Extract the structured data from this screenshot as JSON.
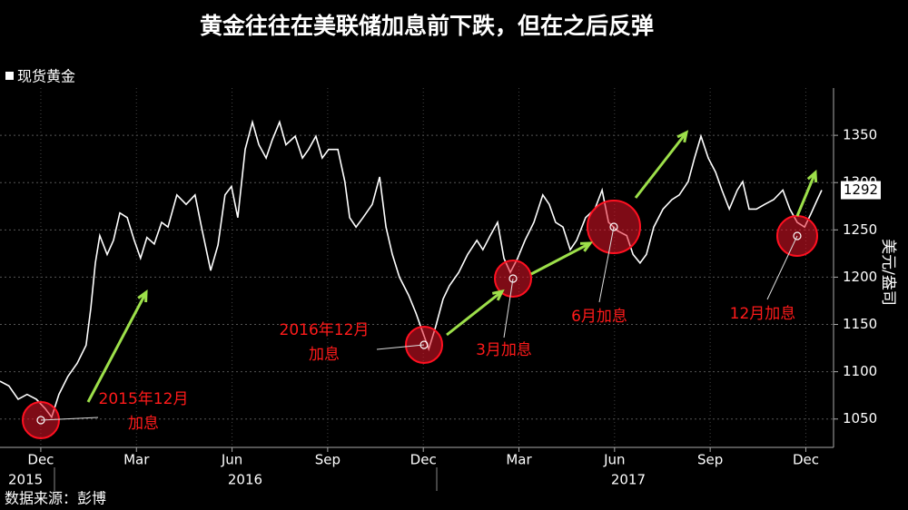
{
  "chart_data": {
    "type": "line",
    "title": "黄金往往在美联储加息前下跌，但在之后反弹",
    "y_label": "美元/盎司",
    "source": "数据来源：彭博",
    "x": [
      -1.28,
      -1.0,
      -0.71,
      -0.43,
      -0.14,
      0.14,
      0.34,
      0.57,
      0.85,
      1.14,
      1.42,
      1.57,
      1.71,
      1.85,
      2.08,
      2.28,
      2.48,
      2.71,
      2.93,
      3.13,
      3.33,
      3.56,
      3.79,
      3.99,
      4.27,
      4.56,
      4.84,
      5.04,
      5.33,
      5.56,
      5.78,
      5.98,
      6.18,
      6.41,
      6.64,
      6.84,
      7.07,
      7.26,
      7.49,
      7.69,
      7.98,
      8.21,
      8.4,
      8.63,
      8.83,
      9.03,
      9.32,
      9.54,
      9.69,
      9.89,
      10.11,
      10.4,
      10.63,
      10.83,
      11.03,
      11.25,
      11.54,
      11.77,
      11.97,
      12.17,
      12.39,
      12.62,
      12.82,
      13.11,
      13.39,
      13.68,
      13.87,
      14.1,
      14.33,
      14.53,
      14.73,
      14.96,
      15.19,
      15.47,
      15.75,
      15.95,
      16.15,
      16.38,
      16.61,
      16.81,
      17.09,
      17.38,
      17.61,
      17.81,
      18.09,
      18.38,
      18.58,
      18.8,
      19.0,
      19.23,
      19.52,
      19.8,
      20.03,
      20.31,
      20.51,
      20.71,
      20.94,
      21.17,
      21.37,
      21.6,
      21.85,
      22.02,
      22.22,
      22.45,
      22.71,
      22.99,
      23.28,
      23.5,
      23.73,
      23.96,
      24.16,
      24.36,
      24.5
    ],
    "series": [
      {
        "name": "现货黄金",
        "color": "#ffffff",
        "values": [
          1090,
          1085,
          1071,
          1076,
          1071,
          1061,
          1052,
          1076,
          1095,
          1109,
          1128,
          1167,
          1215,
          1244,
          1224,
          1239,
          1268,
          1263,
          1239,
          1220,
          1242,
          1235,
          1258,
          1253,
          1287,
          1277,
          1287,
          1253,
          1207,
          1234,
          1287,
          1296,
          1263,
          1335,
          1364,
          1340,
          1326,
          1345,
          1364,
          1340,
          1349,
          1326,
          1335,
          1349,
          1326,
          1335,
          1335,
          1301,
          1263,
          1253,
          1263,
          1277,
          1306,
          1253,
          1224,
          1200,
          1181,
          1162,
          1143,
          1124,
          1148,
          1177,
          1191,
          1205,
          1224,
          1239,
          1229,
          1244,
          1258,
          1220,
          1205,
          1220,
          1239,
          1258,
          1287,
          1277,
          1258,
          1253,
          1229,
          1239,
          1263,
          1272,
          1292,
          1258,
          1249,
          1244,
          1224,
          1215,
          1224,
          1253,
          1272,
          1282,
          1287,
          1301,
          1326,
          1349,
          1326,
          1311,
          1292,
          1272,
          1292,
          1301,
          1272,
          1272,
          1277,
          1282,
          1292,
          1272,
          1258,
          1253,
          1267,
          1282,
          1292
        ]
      }
    ],
    "xlim": [
      -1.28,
      24.87
    ],
    "ylim": [
      1020,
      1400
    ],
    "xticks": [
      {
        "value": 0,
        "label": "Dec"
      },
      {
        "value": 3,
        "label": "Mar"
      },
      {
        "value": 6,
        "label": "Jun"
      },
      {
        "value": 9,
        "label": "Sep"
      },
      {
        "value": 12,
        "label": "Dec"
      },
      {
        "value": 15,
        "label": "Mar"
      },
      {
        "value": 18,
        "label": "Jun"
      },
      {
        "value": 21,
        "label": "Sep"
      },
      {
        "value": 24,
        "label": "Dec"
      }
    ],
    "year_ticks": [
      {
        "value": -0.48,
        "label": "2015"
      },
      {
        "value": 6.41,
        "label": "2016"
      },
      {
        "value": 18.43,
        "label": "2017"
      }
    ],
    "yticks": [
      1050,
      1100,
      1150,
      1200,
      1250,
      1300,
      1350
    ],
    "grid": true,
    "annotations": [
      {
        "lines": [
          "2015年12月",
          "加息"
        ]
      },
      {
        "lines": [
          "2016年12月",
          "加息"
        ]
      },
      {
        "lines": [
          "3月加息"
        ]
      },
      {
        "lines": [
          "6月加息"
        ]
      },
      {
        "lines": [
          "12月加息"
        ]
      }
    ]
  }
}
